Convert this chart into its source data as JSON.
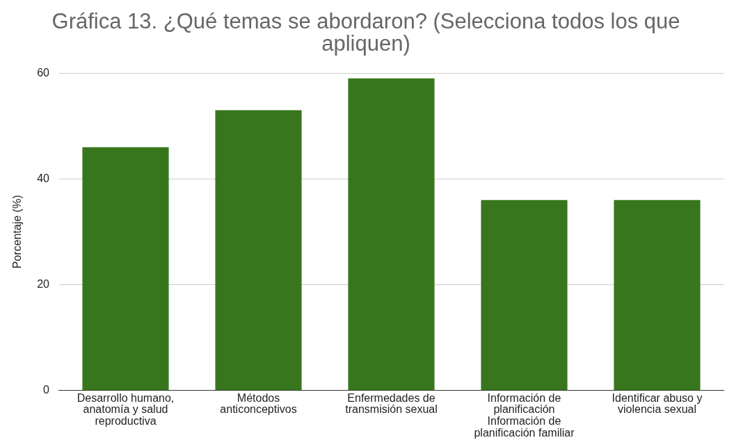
{
  "chart_data": {
    "type": "bar",
    "title": "Gráfica 13. ¿Qué temas se abordaron? (Selecciona todos los que apliquen)",
    "ylabel": "Porcentaje (%)",
    "categories": [
      "Desarrollo humano, anatomía y salud reproductiva",
      "Métodos anticonceptivos",
      "Enfermedades de transmisión sexual",
      "Información de planificación Información de planificación familiar",
      "Identificar abuso y violencia sexual"
    ],
    "values": [
      46,
      53,
      59,
      36,
      36
    ],
    "color": "#38761d",
    "ylim": [
      0,
      60
    ],
    "yticks": [
      0,
      20,
      40,
      60
    ],
    "grid": "y",
    "legend": false
  }
}
